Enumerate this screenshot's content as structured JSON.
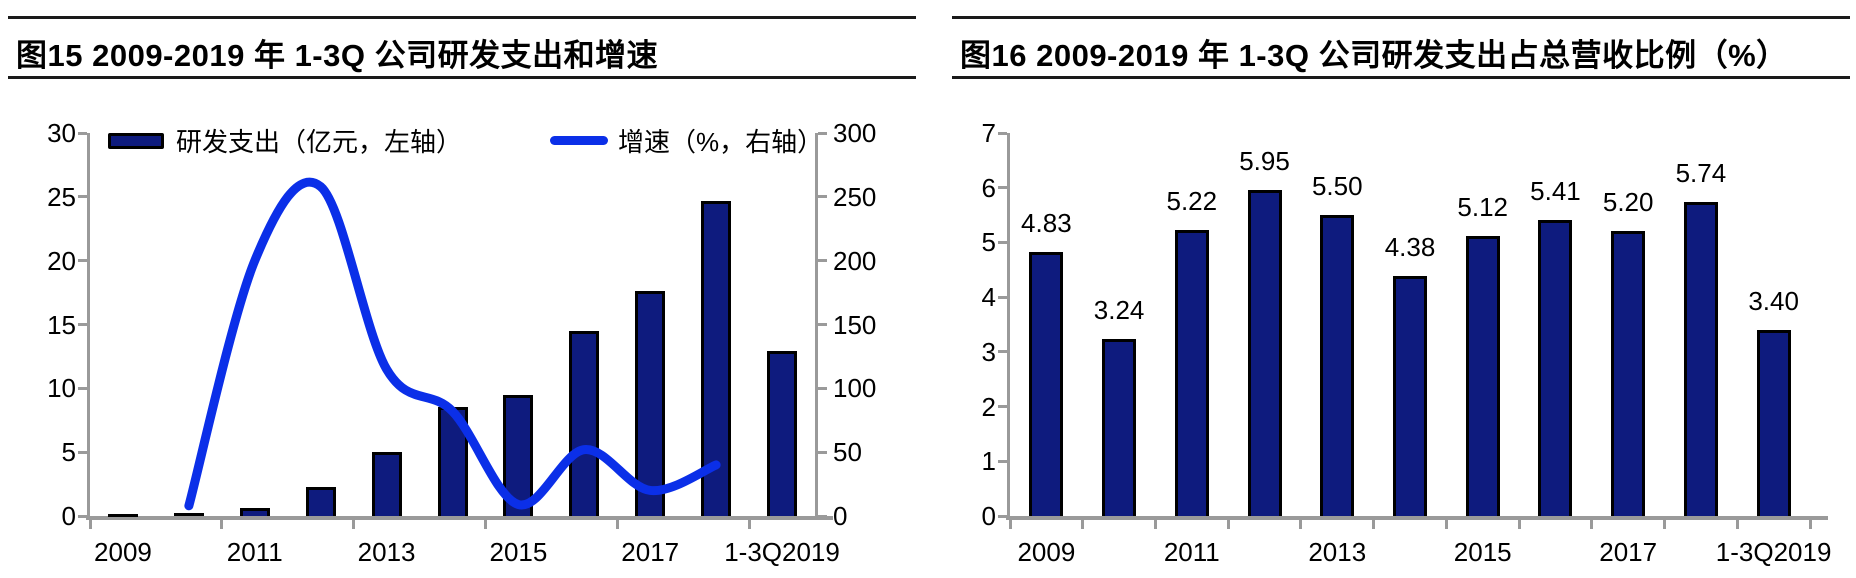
{
  "figures": [
    {
      "title": "图15  2009-2019 年 1-3Q 公司研发支出和增速",
      "legend": [
        {
          "label": "研发支出（亿元，左轴）"
        },
        {
          "label": "增速（%，右轴）"
        }
      ]
    },
    {
      "title": "图16  2009-2019 年 1-3Q 公司研发支出占总营收比例（%）"
    }
  ],
  "chart_data": [
    {
      "type": "bar+line",
      "title": "2009-2019 年 1-3Q 公司研发支出和增速",
      "categories": [
        "2009",
        "2010",
        "2011",
        "2012",
        "2013",
        "2014",
        "2015",
        "2016",
        "2017",
        "2018",
        "1-3Q2019"
      ],
      "x_tick_labels": [
        "2009",
        "2011",
        "2013",
        "2015",
        "2017",
        "1-3Q2019"
      ],
      "x_tick_label_positions": [
        0,
        2,
        4,
        6,
        8,
        10
      ],
      "series": [
        {
          "name": "研发支出（亿元，左轴）",
          "type": "bar",
          "axis": "left",
          "values": [
            0.15,
            0.2,
            0.6,
            2.3,
            5.0,
            8.5,
            9.5,
            14.5,
            17.6,
            24.7,
            12.9
          ]
        },
        {
          "name": "增速（%，右轴）",
          "type": "line",
          "axis": "right",
          "values": [
            null,
            8,
            200,
            258,
            115,
            82,
            9,
            52,
            20,
            40,
            null
          ]
        }
      ],
      "left_axis": {
        "min": 0,
        "max": 30,
        "step": 5,
        "grid": false
      },
      "right_axis": {
        "min": 0,
        "max": 300,
        "step": 50,
        "grid": false
      },
      "legend_position": "top"
    },
    {
      "type": "bar",
      "title": "2009-2019 年 1-3Q 公司研发支出占总营收比例（%）",
      "categories": [
        "2009",
        "2010",
        "2011",
        "2012",
        "2013",
        "2014",
        "2015",
        "2016",
        "2017",
        "2018",
        "1-3Q2019"
      ],
      "x_tick_labels": [
        "2009",
        "2011",
        "2013",
        "2015",
        "2017",
        "1-3Q2019"
      ],
      "x_tick_label_positions": [
        0,
        2,
        4,
        6,
        8,
        10
      ],
      "values": [
        4.83,
        3.24,
        5.22,
        5.95,
        5.5,
        4.38,
        5.12,
        5.41,
        5.2,
        5.74,
        3.4
      ],
      "data_labels": [
        "4.83",
        "3.24",
        "5.22",
        "5.95",
        "5.50",
        "4.38",
        "5.12",
        "5.41",
        "5.20",
        "5.74",
        "3.40"
      ],
      "y_axis": {
        "min": 0,
        "max": 7,
        "step": 1,
        "grid": false
      }
    }
  ],
  "colors": {
    "bar_fill": "#0e1b7e",
    "bar_border": "#000000",
    "line": "#0b2fe8",
    "axis": "#9a9a9a",
    "text": "#000000"
  }
}
